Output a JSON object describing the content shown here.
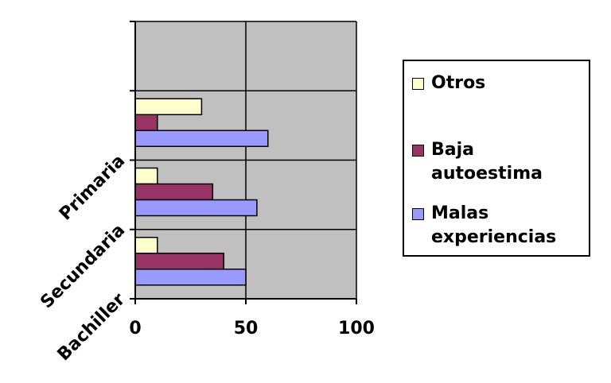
{
  "chart_data": {
    "type": "bar",
    "orientation": "horizontal",
    "categories": [
      "Primaria",
      "Secundaria",
      "Bachiller"
    ],
    "series": [
      {
        "name": "Otros",
        "values": [
          30,
          10,
          10
        ],
        "color": "#ffffcc"
      },
      {
        "name": "Baja autoestima",
        "values": [
          10,
          35,
          40
        ],
        "color": "#993366"
      },
      {
        "name": "Malas experiencias",
        "values": [
          60,
          55,
          50
        ],
        "color": "#9999ff"
      }
    ],
    "xlim": [
      0,
      100
    ],
    "xticks": [
      "0",
      "50",
      "100"
    ],
    "grid": true,
    "plot_background": "#c0c0c0",
    "legend_position": "right",
    "legend_order": [
      "Otros",
      "Baja autoestima",
      "Malas experiencias"
    ]
  }
}
